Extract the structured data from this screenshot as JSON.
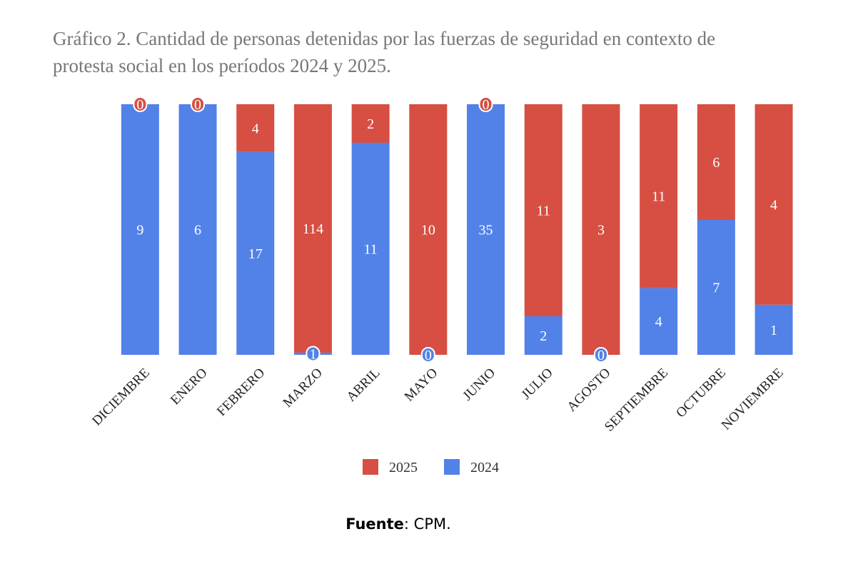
{
  "chart_data": {
    "type": "bar",
    "stacking": "percent",
    "title": "Gráfico 2. Cantidad de personas detenidas por las fuerzas de seguridad en contexto de",
    "title_line2": "protesta social en los períodos 2024 y 2025.",
    "categories": [
      "DICIEMBRE",
      "ENERO",
      "FEBRERO",
      "MARZO",
      "ABRIL",
      "MAYO",
      "JUNIO",
      "JULIO",
      "AGOSTO",
      "SEPTIEMBRE",
      "OCTUBRE",
      "NOVIEMBRE"
    ],
    "series": [
      {
        "name": "2024",
        "color": "#5282e8",
        "values": [
          9,
          6,
          17,
          1,
          11,
          0,
          35,
          2,
          0,
          4,
          7,
          1
        ]
      },
      {
        "name": "2025",
        "color": "#d64f42",
        "values": [
          0,
          0,
          4,
          114,
          2,
          10,
          0,
          11,
          3,
          11,
          6,
          4
        ]
      }
    ],
    "legend": "bottom",
    "source": {
      "label": "Fuente",
      "text": ": CPM."
    }
  }
}
